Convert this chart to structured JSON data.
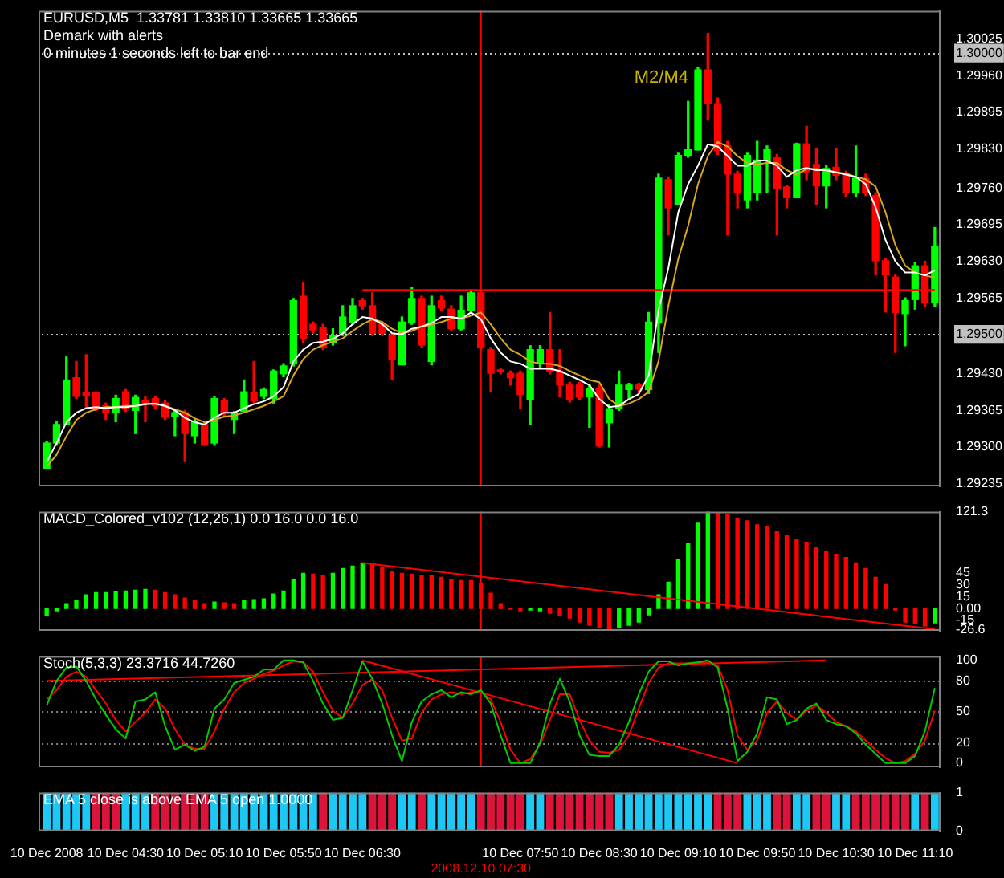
{
  "chart_data": [
    {
      "type": "candlestick",
      "title": "EURUSD,M5  1.33781 1.33810 1.33665 1.33665",
      "subtitle": "Demark with alerts",
      "annotations": [
        "0 minutes 1 seconds left to bar end",
        "M2/M4"
      ],
      "categories": [
        "10 Dec 2008",
        null,
        null,
        null,
        null,
        null,
        null,
        null,
        "10 Dec 04:30",
        null,
        null,
        null,
        null,
        null,
        null,
        null,
        "10 Dec 05:10",
        null,
        null,
        null,
        null,
        null,
        null,
        null,
        "10 Dec 05:50",
        null,
        null,
        null,
        null,
        null,
        null,
        null,
        "10 Dec 06:30",
        null,
        null,
        null,
        null,
        null,
        null,
        null,
        null,
        null,
        null,
        null,
        "2008.12.10 07:30",
        null,
        null,
        null,
        "10 Dec 07:50",
        null,
        null,
        null,
        null,
        null,
        null,
        null,
        "10 Dec 08:30",
        null,
        null,
        null,
        null,
        null,
        null,
        null,
        "10 Dec 09:10",
        null,
        null,
        null,
        null,
        null,
        null,
        null,
        "10 Dec 09:50",
        null,
        null,
        null,
        null,
        null,
        null,
        null,
        "10 Dec 10:30",
        null,
        null,
        null,
        null,
        null,
        null,
        null,
        "10 Dec 11:10",
        null,
        null
      ],
      "ohlc": [
        [
          1.29262,
          1.2931,
          1.29262,
          1.29307
        ],
        [
          1.29307,
          1.29345,
          1.29303,
          1.2934
        ],
        [
          1.2934,
          1.2946,
          1.2934,
          1.29419
        ],
        [
          1.29423,
          1.29452,
          1.29386,
          1.2939
        ],
        [
          1.29396,
          1.29464,
          1.29369,
          1.29392
        ],
        [
          1.29396,
          1.29398,
          1.29365,
          1.29369
        ],
        [
          1.29373,
          1.29378,
          1.29349,
          1.29361
        ],
        [
          1.29361,
          1.29392,
          1.29345,
          1.29386
        ],
        [
          1.29398,
          1.29402,
          1.29363,
          1.29369
        ],
        [
          1.29365,
          1.29392,
          1.29324,
          1.29388
        ],
        [
          1.29383,
          1.2939,
          1.29345,
          1.29378
        ],
        [
          1.29386,
          1.2939,
          1.29369,
          1.29373
        ],
        [
          1.29378,
          1.29382,
          1.29349,
          1.29353
        ],
        [
          1.29354,
          1.29365,
          1.2932,
          1.29361
        ],
        [
          1.29361,
          1.29365,
          1.29274,
          1.29324
        ],
        [
          1.2932,
          1.29349,
          1.29307,
          1.29345
        ],
        [
          1.2934,
          1.29345,
          1.29303,
          1.29303
        ],
        [
          1.29307,
          1.2939,
          1.29303,
          1.29386
        ],
        [
          1.29382,
          1.29386,
          1.29353,
          1.29361
        ],
        [
          1.29349,
          1.29363,
          1.29324,
          1.29361
        ],
        [
          1.29363,
          1.29419,
          1.29361,
          1.29398
        ],
        [
          1.29396,
          1.29452,
          1.29378,
          1.29382
        ],
        [
          1.2939,
          1.29405,
          1.29386,
          1.29402
        ],
        [
          1.29386,
          1.29437,
          1.29378,
          1.29435
        ],
        [
          1.2943,
          1.29448,
          1.29425,
          1.29444
        ],
        [
          1.29448,
          1.29564,
          1.29444,
          1.2956
        ],
        [
          1.29568,
          1.29593,
          1.29485,
          1.29493
        ],
        [
          1.29518,
          1.29522,
          1.29502,
          1.29508
        ],
        [
          1.29512,
          1.29518,
          1.29473,
          1.29477
        ],
        [
          1.29485,
          1.2951,
          1.29481,
          1.29498
        ],
        [
          1.29502,
          1.29551,
          1.29498,
          1.29531
        ],
        [
          1.29522,
          1.29564,
          1.29518,
          1.29551
        ],
        [
          1.2956,
          1.29564,
          1.29545,
          1.29551
        ],
        [
          1.29551,
          1.29574,
          1.29498,
          1.29502
        ],
        [
          1.29518,
          1.29522,
          1.29498,
          1.29502
        ],
        [
          1.29498,
          1.29502,
          1.29419,
          1.29456
        ],
        [
          1.29446,
          1.29531,
          1.29446,
          1.29522
        ],
        [
          1.29522,
          1.29584,
          1.29518,
          1.29564
        ],
        [
          1.29564,
          1.29568,
          1.29477,
          1.29481
        ],
        [
          1.29452,
          1.29568,
          1.29446,
          1.29551
        ],
        [
          1.2956,
          1.29568,
          1.29543,
          1.29547
        ],
        [
          1.29545,
          1.29551,
          1.29508,
          1.2951
        ],
        [
          1.2951,
          1.29568,
          1.29508,
          1.29543
        ],
        [
          1.29543,
          1.29578,
          1.2954,
          1.29574
        ],
        [
          1.29574,
          1.29578,
          1.29473,
          1.29477
        ],
        [
          1.29473,
          1.29477,
          1.29398,
          1.29431
        ],
        [
          1.29437,
          1.2944,
          1.2943,
          1.29434
        ],
        [
          1.29431,
          1.29435,
          1.2941,
          1.29423
        ],
        [
          1.29431,
          1.29435,
          1.29368,
          1.29393
        ],
        [
          1.29385,
          1.2948,
          1.2934,
          1.29473
        ],
        [
          1.29448,
          1.2948,
          1.2944,
          1.29473
        ],
        [
          1.29473,
          1.29539,
          1.2943,
          1.29435
        ],
        [
          1.29435,
          1.29473,
          1.29389,
          1.2941
        ],
        [
          1.2941,
          1.29415,
          1.2938,
          1.29385
        ],
        [
          1.2941,
          1.29415,
          1.29385,
          1.29389
        ],
        [
          1.29389,
          1.2941,
          1.29335,
          1.29403
        ],
        [
          1.29403,
          1.2941,
          1.293,
          1.29302
        ],
        [
          1.29343,
          1.29375,
          1.293,
          1.29368
        ],
        [
          1.29368,
          1.29435,
          1.29365,
          1.2941
        ],
        [
          1.29402,
          1.29413,
          1.29385,
          1.2941
        ],
        [
          1.2941,
          1.29413,
          1.29395,
          1.29403
        ],
        [
          1.29402,
          1.29539,
          1.29395,
          1.29522
        ],
        [
          1.2952,
          1.29785,
          1.29468,
          1.29778
        ],
        [
          1.29775,
          1.2978,
          1.29677,
          1.29725
        ],
        [
          1.29731,
          1.29822,
          1.29731,
          1.29818
        ],
        [
          1.29818,
          1.29914,
          1.29815,
          1.29828
        ],
        [
          1.29828,
          1.29975,
          1.29828,
          1.2997
        ],
        [
          1.2997,
          1.30035,
          1.29881,
          1.2991
        ],
        [
          1.2991,
          1.2992,
          1.2982,
          1.29827
        ],
        [
          1.29835,
          1.29843,
          1.29677,
          1.29785
        ],
        [
          1.29785,
          1.2979,
          1.29725,
          1.29752
        ],
        [
          1.29739,
          1.29822,
          1.29725,
          1.29818
        ],
        [
          1.29752,
          1.29843,
          1.29739,
          1.2981
        ],
        [
          1.2981,
          1.29835,
          1.29752,
          1.29828
        ],
        [
          1.29814,
          1.2982,
          1.29677,
          1.2976
        ],
        [
          1.29762,
          1.29765,
          1.29725,
          1.29743
        ],
        [
          1.29743,
          1.2984,
          1.29743,
          1.29839
        ],
        [
          1.29839,
          1.2987,
          1.29775,
          1.29789
        ],
        [
          1.29802,
          1.2983,
          1.29731,
          1.29764
        ],
        [
          1.29764,
          1.298,
          1.29725,
          1.29795
        ],
        [
          1.29797,
          1.2983,
          1.29775,
          1.29783
        ],
        [
          1.29785,
          1.2979,
          1.29745,
          1.29752
        ],
        [
          1.29752,
          1.29835,
          1.29745,
          1.29778
        ],
        [
          1.29777,
          1.29785,
          1.29747,
          1.29752
        ],
        [
          1.29747,
          1.29752,
          1.29606,
          1.29631
        ],
        [
          1.29631,
          1.29635,
          1.2954,
          1.29606
        ],
        [
          1.29602,
          1.29606,
          1.29468,
          1.29539
        ],
        [
          1.29537,
          1.29565,
          1.2948,
          1.2956
        ],
        [
          1.29562,
          1.29628,
          1.29545,
          1.29622
        ],
        [
          1.29622,
          1.2963,
          1.2955,
          1.29556
        ],
        [
          1.29556,
          1.2969,
          1.2955,
          1.29656
        ]
      ],
      "colors": [
        "#00ff00",
        "#00ff00",
        "#00ff00",
        "#ff0000",
        "#ff0000",
        "#ff0000",
        "#ff0000",
        "#00ff00",
        "#ff0000",
        "#00ff00",
        "#ff0000",
        "#ff0000",
        "#ff0000",
        "#00ff00",
        "#ff0000",
        "#00ff00",
        "#ff0000",
        "#00ff00",
        "#ff0000",
        "#00ff00",
        "#00ff00",
        "#ff0000",
        "#00ff00",
        "#00ff00",
        "#00ff00",
        "#00ff00",
        "#ff0000",
        "#ff0000",
        "#ff0000",
        "#00ff00",
        "#00ff00",
        "#00ff00",
        "#ff0000",
        "#ff0000",
        "#ff0000",
        "#ff0000",
        "#00ff00",
        "#00ff00",
        "#ff0000",
        "#00ff00",
        "#ff0000",
        "#ff0000",
        "#00ff00",
        "#00ff00",
        "#ff0000",
        "#ff0000",
        "#ff0000",
        "#ff0000",
        "#ff0000",
        "#00ff00",
        "#00ff00",
        "#ff0000",
        "#ff0000",
        "#ff0000",
        "#ff0000",
        "#00ff00",
        "#ff0000",
        "#00ff00",
        "#00ff00",
        "#00ff00",
        "#ff0000",
        "#00ff00",
        "#00ff00",
        "#ff0000",
        "#00ff00",
        "#00ff00",
        "#00ff00",
        "#ff0000",
        "#ff0000",
        "#ff0000",
        "#ff0000",
        "#00ff00",
        "#00ff00",
        "#00ff00",
        "#ff0000",
        "#ff0000",
        "#00ff00",
        "#ff0000",
        "#ff0000",
        "#00ff00",
        "#ff0000",
        "#ff0000",
        "#00ff00",
        "#ff0000",
        "#ff0000",
        "#ff0000",
        "#ff0000",
        "#00ff00",
        "#00ff00",
        "#ff0000",
        "#00ff00"
      ],
      "series": [
        {
          "type": "line",
          "color": "#ffffff",
          "values": [
            1.29273,
            1.29307,
            1.29344,
            1.29361,
            1.29369,
            1.29371,
            1.29369,
            1.29371,
            1.29371,
            1.29373,
            1.29376,
            1.29377,
            1.29373,
            1.29365,
            1.29352,
            1.29344,
            1.2934,
            1.29352,
            1.29361,
            1.29361,
            1.29369,
            1.29376,
            1.29381,
            1.2939,
            1.29406,
            1.29452,
            1.29473,
            1.29485,
            1.29487,
            1.29492,
            1.29502,
            1.29518,
            1.29531,
            1.29528,
            1.29518,
            1.29502,
            1.295,
            1.2951,
            1.29514,
            1.2952,
            1.29531,
            1.29531,
            1.29528,
            1.29539,
            1.29527,
            1.29493,
            1.29468,
            1.29452,
            1.29448,
            1.29439,
            1.29439,
            1.29439,
            1.29435,
            1.29427,
            1.29419,
            1.2941,
            1.29385,
            1.29371,
            1.29373,
            1.29385,
            1.29394,
            1.29427,
            1.29543,
            1.29618,
            1.29717,
            1.29767,
            1.298,
            1.29838,
            1.29834,
            1.29817,
            1.298,
            1.298,
            1.29809,
            1.29809,
            1.298,
            1.2978,
            1.29792,
            1.29796,
            1.29792,
            1.29792,
            1.29788,
            1.29784,
            1.2978,
            1.29767,
            1.29726,
            1.29668,
            1.2963,
            1.2961,
            1.2961,
            1.29605,
            1.29614
          ]
        },
        {
          "type": "line",
          "color": "#daa520",
          "values": [
            1.29265,
            1.29286,
            1.29319,
            1.29348,
            1.29361,
            1.29367,
            1.29371,
            1.29371,
            1.29373,
            1.29373,
            1.29377,
            1.29377,
            1.29373,
            1.29367,
            1.29361,
            1.29351,
            1.29344,
            1.29348,
            1.29354,
            1.29356,
            1.29361,
            1.29367,
            1.29373,
            1.29381,
            1.2939,
            1.29427,
            1.29456,
            1.29473,
            1.29481,
            1.29487,
            1.29493,
            1.29506,
            1.29518,
            1.29527,
            1.29522,
            1.2951,
            1.29502,
            1.29506,
            1.29514,
            1.29517,
            1.29522,
            1.29528,
            1.29528,
            1.29533,
            1.29539,
            1.29518,
            1.29493,
            1.29473,
            1.29464,
            1.29452,
            1.29448,
            1.29448,
            1.29444,
            1.29435,
            1.29427,
            1.29419,
            1.29415,
            1.29385,
            1.29373,
            1.29377,
            1.29385,
            1.29398,
            1.29452,
            1.29551,
            1.29634,
            1.29693,
            1.29767,
            1.29817,
            1.29842,
            1.29834,
            1.29817,
            1.29805,
            1.29802,
            1.29805,
            1.29805,
            1.29792,
            1.29784,
            1.29794,
            1.29794,
            1.29791,
            1.29788,
            1.29786,
            1.2978,
            1.29776,
            1.29763,
            1.29717,
            1.29659,
            1.29622,
            1.2961,
            1.29605,
            1.29601
          ]
        },
        {
          "type": "line",
          "color": "#ff0000",
          "values": [
            null,
            null,
            null,
            null,
            null,
            null,
            null,
            null,
            null,
            null,
            null,
            null,
            null,
            null,
            null,
            null,
            null,
            null,
            null,
            null,
            null,
            null,
            null,
            null,
            null,
            null,
            null,
            null,
            null,
            null,
            null,
            null,
            1.29579,
            null,
            null,
            null,
            null,
            null,
            null,
            null,
            null,
            null,
            null,
            null,
            null,
            null,
            null,
            null,
            null,
            null,
            null,
            null,
            null,
            null,
            null,
            null,
            null,
            null,
            null,
            null,
            null,
            null,
            null,
            null,
            null,
            null,
            null,
            null,
            null,
            null,
            null,
            null,
            null,
            null,
            null,
            null,
            null,
            null,
            null,
            null,
            null,
            null,
            null,
            null,
            null,
            null,
            null,
            null,
            null,
            null,
            1.29579
          ]
        }
      ],
      "ylim": [
        1.2923,
        1.30075
      ],
      "yticks": [
        1.30025,
        {
          "value": 1.3,
          "label": "1.30000"
        },
        {
          "value": 1.2996,
          "label": "1.29960"
        },
        1.29895,
        {
          "value": 1.2983,
          "label": "1.29830"
        },
        {
          "value": 1.2976,
          "label": "1.29760"
        },
        1.29695,
        {
          "value": 1.2963,
          "label": "1.29630"
        },
        1.29565,
        {
          "value": 1.295,
          "label": "1.29500"
        },
        {
          "value": 1.2943,
          "label": "1.29430"
        },
        1.29365,
        {
          "value": 1.293,
          "label": "1.29300"
        },
        1.29235
      ],
      "ref_lines": [
        {
          "axis": "y",
          "value": 1.3,
          "color": "#c0c0c0",
          "line_style": "dotted"
        },
        {
          "axis": "y",
          "value": 1.295,
          "color": "#c0c0c0",
          "line_style": "dotted"
        },
        {
          "axis": "x",
          "value": "2008.12.10 07:30",
          "color": "#ff0000"
        }
      ],
      "tick_labels": "y"
    },
    {
      "type": "bar",
      "title": "MACD_Colored_v102 (12,26,1) 0.0 16.0 0.0 16.0",
      "categories": [
        "10 Dec 2008",
        null,
        null,
        null,
        null,
        null,
        null,
        null,
        "10 Dec 04:30",
        null,
        null,
        null,
        null,
        null,
        null,
        null,
        "10 Dec 05:10",
        null,
        null,
        null,
        null,
        null,
        null,
        null,
        "10 Dec 05:50",
        null,
        null,
        null,
        null,
        null,
        null,
        null,
        "10 Dec 06:30",
        null,
        null,
        null,
        null,
        null,
        null,
        null,
        null,
        null,
        null,
        null,
        "2008.12.10 07:30",
        null,
        null,
        null,
        "10 Dec 07:50",
        null,
        null,
        null,
        null,
        null,
        null,
        null,
        "10 Dec 08:30",
        null,
        null,
        null,
        null,
        null,
        null,
        null,
        "10 Dec 09:10",
        null,
        null,
        null,
        null,
        null,
        null,
        null,
        "10 Dec 09:50",
        null,
        null,
        null,
        null,
        null,
        null,
        null,
        "10 Dec 10:30",
        null,
        null,
        null,
        null,
        null,
        null,
        null,
        "10 Dec 11:10",
        null,
        null
      ],
      "values": [
        -9,
        -3,
        6,
        10,
        17,
        20,
        20,
        21,
        22,
        23,
        24,
        23,
        20,
        17,
        13,
        10,
        6,
        8,
        7,
        6,
        10,
        11,
        12,
        18,
        22,
        36,
        44,
        43,
        41,
        44,
        50,
        53,
        57,
        55,
        52,
        46,
        44,
        43,
        41,
        41,
        39,
        36,
        35,
        35,
        32,
        19,
        6,
        -1,
        -3,
        -2,
        -3,
        -6,
        -9,
        -12,
        -17,
        -21,
        -24,
        -26,
        -24,
        -21,
        -17,
        -8,
        17,
        33,
        61,
        81,
        107,
        121,
        120,
        118,
        113,
        110,
        105,
        102,
        96,
        91,
        87,
        83,
        77,
        72,
        68,
        64,
        57,
        50,
        39,
        30,
        -2,
        -17,
        -19,
        -22,
        -18
      ],
      "colors": [
        "#00ff00",
        "#00ff00",
        "#00ff00",
        "#00ff00",
        "#00ff00",
        "#00ff00",
        "#00ff00",
        "#00ff00",
        "#00ff00",
        "#00ff00",
        "#00ff00",
        "#ff0000",
        "#ff0000",
        "#ff0000",
        "#ff0000",
        "#ff0000",
        "#ff0000",
        "#00ff00",
        "#ff0000",
        "#ff0000",
        "#00ff00",
        "#00ff00",
        "#00ff00",
        "#00ff00",
        "#00ff00",
        "#00ff00",
        "#00ff00",
        "#ff0000",
        "#ff0000",
        "#00ff00",
        "#00ff00",
        "#00ff00",
        "#00ff00",
        "#ff0000",
        "#ff0000",
        "#ff0000",
        "#ff0000",
        "#ff0000",
        "#ff0000",
        "#ff0000",
        "#ff0000",
        "#ff0000",
        "#ff0000",
        "#ff0000",
        "#ff0000",
        "#ff0000",
        "#ff0000",
        "#ff0000",
        "#ff0000",
        "#00ff00",
        "#00ff00",
        "#ff0000",
        "#ff0000",
        "#ff0000",
        "#ff0000",
        "#ff0000",
        "#ff0000",
        "#ff0000",
        "#00ff00",
        "#00ff00",
        "#00ff00",
        "#00ff00",
        "#00ff00",
        "#00ff00",
        "#00ff00",
        "#00ff00",
        "#00ff00",
        "#00ff00",
        "#ff0000",
        "#ff0000",
        "#ff0000",
        "#ff0000",
        "#ff0000",
        "#ff0000",
        "#ff0000",
        "#ff0000",
        "#ff0000",
        "#ff0000",
        "#ff0000",
        "#ff0000",
        "#ff0000",
        "#ff0000",
        "#ff0000",
        "#ff0000",
        "#ff0000",
        "#ff0000",
        "#ff0000",
        "#ff0000",
        "#ff0000",
        "#ff0000",
        "#00ff00"
      ],
      "series": [
        {
          "type": "line",
          "color": "#ff0000",
          "values": [
            null,
            null,
            null,
            null,
            null,
            null,
            null,
            null,
            null,
            null,
            null,
            null,
            null,
            null,
            null,
            null,
            null,
            null,
            null,
            null,
            null,
            null,
            null,
            null,
            null,
            null,
            null,
            null,
            null,
            null,
            null,
            null,
            57,
            null,
            null,
            null,
            null,
            null,
            null,
            null,
            null,
            null,
            null,
            null,
            null,
            null,
            null,
            null,
            null,
            null,
            null,
            null,
            null,
            null,
            null,
            null,
            null,
            null,
            null,
            null,
            null,
            null,
            null,
            null,
            null,
            null,
            null,
            null,
            null,
            null,
            null,
            null,
            null,
            null,
            null,
            null,
            null,
            null,
            null,
            null,
            null,
            null,
            null,
            null,
            null,
            null,
            null,
            null,
            null,
            null,
            -26
          ]
        }
      ],
      "ylim": [
        -28,
        121.3
      ],
      "yticks": [
        121.3,
        45,
        30,
        15,
        {
          "value": 0,
          "label": "0.00"
        },
        -15,
        -26.6
      ],
      "ref_lines": [
        {
          "axis": "x",
          "value": "2008.12.10 07:30",
          "color": "#ff0000"
        }
      ],
      "tick_labels": "y"
    },
    {
      "type": "line",
      "title": "Stoch(5,3,3) 23.3716 44.7260",
      "categories": [
        "10 Dec 2008",
        null,
        null,
        null,
        null,
        null,
        null,
        null,
        "10 Dec 04:30",
        null,
        null,
        null,
        null,
        null,
        null,
        null,
        "10 Dec 05:10",
        null,
        null,
        null,
        null,
        null,
        null,
        null,
        "10 Dec 05:50",
        null,
        null,
        null,
        null,
        null,
        null,
        null,
        "10 Dec 06:30",
        null,
        null,
        null,
        null,
        null,
        null,
        null,
        null,
        null,
        null,
        null,
        "2008.12.10 07:30",
        null,
        null,
        null,
        "10 Dec 07:50",
        null,
        null,
        null,
        null,
        null,
        null,
        null,
        "10 Dec 08:30",
        null,
        null,
        null,
        null,
        null,
        null,
        null,
        "10 Dec 09:10",
        null,
        null,
        null,
        null,
        null,
        null,
        null,
        "10 Dec 09:50",
        null,
        null,
        null,
        null,
        null,
        null,
        null,
        "10 Dec 10:30",
        null,
        null,
        null,
        null,
        null,
        null,
        null,
        "10 Dec 11:10",
        null,
        null
      ],
      "series": [
        {
          "color": "#00cc00",
          "values": [
            56,
            80,
            93,
            94,
            80,
            62,
            47,
            33,
            24,
            60,
            62,
            69,
            36,
            13,
            18,
            12,
            16,
            53,
            62,
            78,
            81,
            84,
            91,
            91,
            100,
            100,
            98,
            80,
            58,
            42,
            44,
            71,
            99,
            82,
            58,
            27,
            2,
            40,
            60,
            67,
            71,
            64,
            69,
            67,
            71,
            58,
            27,
            0,
            0,
            0,
            20,
            58,
            82,
            60,
            27,
            8,
            7,
            7,
            18,
            40,
            67,
            89,
            99,
            99,
            95,
            97,
            98,
            100,
            93,
            53,
            2,
            11,
            29,
            64,
            62,
            38,
            42,
            53,
            58,
            42,
            38,
            36,
            29,
            18,
            9,
            0,
            0,
            0,
            7,
            31,
            73
          ]
        },
        {
          "color": "#ff0000",
          "values": [
            62,
            71,
            84,
            89,
            84,
            71,
            58,
            42,
            31,
            40,
            49,
            62,
            53,
            33,
            18,
            14,
            14,
            31,
            53,
            69,
            78,
            82,
            87,
            90,
            95,
            99,
            98,
            89,
            69,
            51,
            44,
            58,
            76,
            82,
            71,
            44,
            22,
            24,
            49,
            62,
            67,
            69,
            67,
            69,
            69,
            62,
            40,
            13,
            0,
            4,
            18,
            42,
            67,
            67,
            42,
            22,
            11,
            10,
            13,
            27,
            53,
            78,
            93,
            97,
            97,
            97,
            98,
            98,
            95,
            71,
            27,
            13,
            22,
            49,
            60,
            49,
            42,
            51,
            56,
            49,
            40,
            36,
            31,
            22,
            13,
            5,
            0,
            2,
            9,
            22,
            51
          ]
        },
        {
          "color": "#ff0000",
          "values": [
            80,
            null,
            null,
            null,
            null,
            null,
            null,
            null,
            null,
            null,
            null,
            null,
            null,
            null,
            null,
            null,
            null,
            null,
            null,
            null,
            null,
            null,
            null,
            null,
            null,
            null,
            null,
            null,
            null,
            null,
            null,
            null,
            null,
            null,
            null,
            null,
            null,
            null,
            null,
            null,
            null,
            null,
            null,
            null,
            null,
            null,
            null,
            null,
            null,
            null,
            null,
            null,
            null,
            null,
            null,
            null,
            null,
            null,
            null,
            null,
            null,
            null,
            null,
            null,
            null,
            null,
            null,
            null,
            null,
            null,
            null,
            null,
            null,
            null,
            null,
            null,
            null,
            null,
            null,
            100,
            null,
            null,
            null,
            null,
            null,
            null,
            null,
            null,
            null,
            null,
            null
          ]
        },
        {
          "color": "#ff0000",
          "values": [
            null,
            null,
            null,
            null,
            null,
            null,
            null,
            null,
            null,
            null,
            null,
            null,
            null,
            null,
            null,
            null,
            null,
            null,
            null,
            null,
            null,
            null,
            null,
            null,
            null,
            null,
            null,
            null,
            null,
            null,
            null,
            null,
            100,
            null,
            null,
            null,
            null,
            null,
            null,
            null,
            null,
            null,
            null,
            null,
            null,
            null,
            null,
            null,
            null,
            null,
            null,
            null,
            null,
            null,
            null,
            null,
            null,
            null,
            null,
            null,
            null,
            null,
            null,
            null,
            null,
            null,
            null,
            null,
            null,
            null,
            0,
            null,
            null,
            null,
            null,
            null,
            null,
            null,
            null,
            null,
            null,
            null,
            null,
            null,
            null,
            null,
            null,
            null,
            null,
            null,
            null
          ]
        }
      ],
      "ylim": [
        -4,
        104
      ],
      "yticks": [
        100,
        80,
        50,
        20,
        0
      ],
      "ref_lines": [
        {
          "axis": "y",
          "value": 80,
          "color": "#808080",
          "line_style": "dotted"
        },
        {
          "axis": "y",
          "value": 50,
          "color": "#808080",
          "line_style": "dotted"
        },
        {
          "axis": "y",
          "value": 20,
          "color": "#808080",
          "line_style": "dotted"
        },
        {
          "axis": "x",
          "value": "2008.12.10 07:30",
          "color": "#ff0000"
        }
      ],
      "tick_labels": "y"
    },
    {
      "type": "bar",
      "title": "EMA 5 close is above EMA 5 open 1.0000",
      "categories": [
        "10 Dec 2008",
        null,
        null,
        null,
        null,
        null,
        null,
        null,
        "10 Dec 04:30",
        null,
        null,
        null,
        null,
        null,
        null,
        null,
        "10 Dec 05:10",
        null,
        null,
        null,
        null,
        null,
        null,
        null,
        "10 Dec 05:50",
        null,
        null,
        null,
        null,
        null,
        null,
        null,
        "10 Dec 06:30",
        null,
        null,
        null,
        null,
        null,
        null,
        null,
        null,
        null,
        null,
        null,
        "2008.12.10 07:30",
        null,
        null,
        null,
        "10 Dec 07:50",
        null,
        null,
        null,
        null,
        null,
        null,
        null,
        "10 Dec 08:30",
        null,
        null,
        null,
        null,
        null,
        null,
        null,
        "10 Dec 09:10",
        null,
        null,
        null,
        null,
        null,
        null,
        null,
        "10 Dec 09:50",
        null,
        null,
        null,
        null,
        null,
        null,
        null,
        "10 Dec 10:30",
        null,
        null,
        null,
        null,
        null,
        null,
        null,
        "10 Dec 11:10",
        null,
        null
      ],
      "values": [
        1,
        1,
        1,
        1,
        1,
        1,
        1,
        1,
        1,
        1,
        1,
        1,
        1,
        1,
        1,
        1,
        1,
        1,
        1,
        1,
        1,
        1,
        1,
        1,
        1,
        1,
        1,
        1,
        1,
        1,
        1,
        1,
        1,
        1,
        1,
        1,
        1,
        1,
        1,
        1,
        1,
        1,
        1,
        1,
        1,
        1,
        1,
        1,
        1,
        1,
        1,
        1,
        1,
        1,
        1,
        1,
        1,
        1,
        1,
        1,
        1,
        1,
        1,
        1,
        1,
        1,
        1,
        1,
        1,
        1,
        1,
        1,
        1,
        1,
        1,
        1,
        1,
        1,
        1,
        1,
        1,
        1,
        1,
        1,
        1,
        1,
        1,
        1,
        1,
        1,
        1
      ],
      "colors": [
        "#1ec8f5",
        "#1ec8f5",
        "#1ec8f5",
        "#1ec8f5",
        "#1ec8f5",
        "#dc143c",
        "#dc143c",
        "#dc143c",
        "#1ec8f5",
        "#1ec8f5",
        "#1ec8f5",
        "#dc143c",
        "#dc143c",
        "#dc143c",
        "#dc143c",
        "#dc143c",
        "#dc143c",
        "#1ec8f5",
        "#1ec8f5",
        "#1ec8f5",
        "#1ec8f5",
        "#1ec8f5",
        "#1ec8f5",
        "#1ec8f5",
        "#1ec8f5",
        "#1ec8f5",
        "#1ec8f5",
        "#1ec8f5",
        "#dc143c",
        "#1ec8f5",
        "#1ec8f5",
        "#1ec8f5",
        "#1ec8f5",
        "#dc143c",
        "#dc143c",
        "#dc143c",
        "#1ec8f5",
        "#1ec8f5",
        "#dc143c",
        "#1ec8f5",
        "#1ec8f5",
        "#1ec8f5",
        "#1ec8f5",
        "#1ec8f5",
        "#dc143c",
        "#dc143c",
        "#dc143c",
        "#dc143c",
        "#dc143c",
        "#1ec8f5",
        "#1ec8f5",
        "#dc143c",
        "#dc143c",
        "#dc143c",
        "#dc143c",
        "#dc143c",
        "#dc143c",
        "#dc143c",
        "#1ec8f5",
        "#1ec8f5",
        "#1ec8f5",
        "#1ec8f5",
        "#1ec8f5",
        "#1ec8f5",
        "#1ec8f5",
        "#1ec8f5",
        "#1ec8f5",
        "#1ec8f5",
        "#dc143c",
        "#dc143c",
        "#dc143c",
        "#1ec8f5",
        "#1ec8f5",
        "#1ec8f5",
        "#dc143c",
        "#dc143c",
        "#1ec8f5",
        "#1ec8f5",
        "#dc143c",
        "#dc143c",
        "#1ec8f5",
        "#1ec8f5",
        "#dc143c",
        "#dc143c",
        "#dc143c",
        "#dc143c",
        "#dc143c",
        "#dc143c",
        "#1ec8f5",
        "#dc143c",
        "#1ec8f5"
      ],
      "ylim": [
        0,
        1
      ],
      "yticks": [
        1,
        0
      ]
    }
  ]
}
